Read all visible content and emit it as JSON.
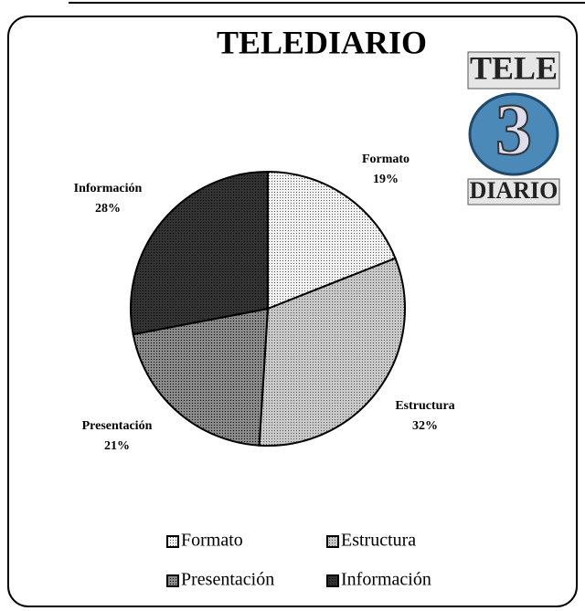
{
  "chart_data": {
    "type": "pie",
    "title": "TELEDIARIO",
    "categories": [
      "Formato",
      "Estructura",
      "Presentación",
      "Información"
    ],
    "values": [
      19,
      32,
      21,
      28
    ],
    "value_labels": [
      "19%",
      "32%",
      "21%",
      "28%"
    ],
    "colors": [
      "#f2f2f2",
      "#c8c8c8",
      "#8a8a8a",
      "#333333"
    ],
    "legend": "bottom"
  },
  "logo": {
    "top": "TELE",
    "number": "3",
    "bottom": "DIARIO"
  }
}
